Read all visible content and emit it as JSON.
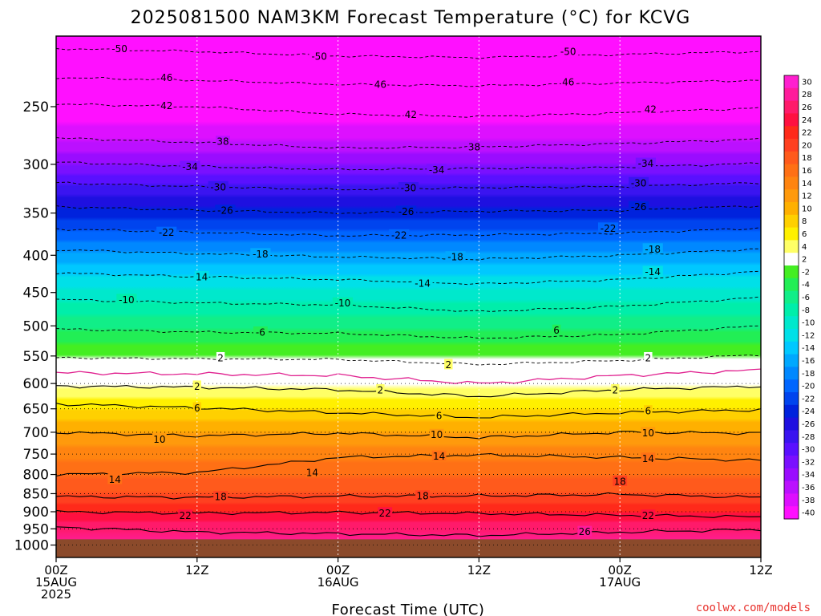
{
  "page": {
    "title": "2025081500 NAM3KM Forecast Temperature (°C) for KCVG",
    "credit": "coolwx.com/models"
  },
  "chart_data": {
    "type": "heatmap",
    "title": "2025081500 NAM3KM Forecast Temperature (°C) for KCVG",
    "xlabel": "Forecast Time (UTC)",
    "ylabel": "",
    "x_ticks": [
      {
        "hour": 0,
        "lines": [
          "00Z",
          "15AUG",
          "2025"
        ]
      },
      {
        "hour": 12,
        "lines": [
          "12Z"
        ]
      },
      {
        "hour": 24,
        "lines": [
          "00Z",
          "16AUG"
        ]
      },
      {
        "hour": 36,
        "lines": [
          "12Z"
        ]
      },
      {
        "hour": 48,
        "lines": [
          "00Z",
          "17AUG"
        ]
      },
      {
        "hour": 60,
        "lines": [
          "12Z"
        ]
      }
    ],
    "xlim": [
      0,
      60
    ],
    "y_ticks": [
      250,
      300,
      350,
      400,
      450,
      500,
      550,
      600,
      650,
      700,
      750,
      800,
      850,
      900,
      950,
      1000
    ],
    "ylim_hPa": [
      200,
      1040
    ],
    "y_scale": "log-pressure",
    "ground_pressure_hPa": 982,
    "ground_color": "#8b4a2b",
    "colorbar": {
      "ticks": [
        30,
        28,
        26,
        24,
        22,
        20,
        18,
        16,
        14,
        12,
        10,
        8,
        6,
        4,
        2,
        -2,
        -4,
        -6,
        -8,
        -10,
        -12,
        -14,
        -16,
        -18,
        -20,
        -22,
        -24,
        -26,
        -28,
        -30,
        -32,
        -34,
        -36,
        -38,
        -40
      ],
      "colors": [
        {
          "from": 28,
          "to": 32,
          "color": "#ff1fcf"
        },
        {
          "from": 26,
          "to": 28,
          "color": "#ff1b9b"
        },
        {
          "from": 24,
          "to": 26,
          "color": "#ff1a6a"
        },
        {
          "from": 22,
          "to": 24,
          "color": "#ff1040"
        },
        {
          "from": 20,
          "to": 22,
          "color": "#ff2a1a"
        },
        {
          "from": 18,
          "to": 20,
          "color": "#ff4020"
        },
        {
          "from": 16,
          "to": 18,
          "color": "#ff5a1c"
        },
        {
          "from": 14,
          "to": 16,
          "color": "#ff7015"
        },
        {
          "from": 12,
          "to": 14,
          "color": "#ff8410"
        },
        {
          "from": 10,
          "to": 12,
          "color": "#ff9a0c"
        },
        {
          "from": 8,
          "to": 10,
          "color": "#ffb000"
        },
        {
          "from": 6,
          "to": 8,
          "color": "#ffd000"
        },
        {
          "from": 4,
          "to": 6,
          "color": "#fff000"
        },
        {
          "from": 2,
          "to": 4,
          "color": "#ffff66"
        },
        {
          "from": -2,
          "to": 2,
          "color": "#ffffff"
        },
        {
          "from": -4,
          "to": -2,
          "color": "#44ee22"
        },
        {
          "from": -6,
          "to": -4,
          "color": "#22ee55"
        },
        {
          "from": -8,
          "to": -6,
          "color": "#11ee88"
        },
        {
          "from": -10,
          "to": -8,
          "color": "#00eeaa"
        },
        {
          "from": -12,
          "to": -10,
          "color": "#00e8cc"
        },
        {
          "from": -14,
          "to": -12,
          "color": "#00e0e8"
        },
        {
          "from": -16,
          "to": -14,
          "color": "#00c8ff"
        },
        {
          "from": -18,
          "to": -16,
          "color": "#00a8ff"
        },
        {
          "from": -20,
          "to": -18,
          "color": "#0088ff"
        },
        {
          "from": -22,
          "to": -20,
          "color": "#0066ff"
        },
        {
          "from": -24,
          "to": -22,
          "color": "#0044ee"
        },
        {
          "from": -26,
          "to": -24,
          "color": "#0022dd"
        },
        {
          "from": -28,
          "to": -26,
          "color": "#1e10e0"
        },
        {
          "from": -30,
          "to": -28,
          "color": "#3a14f0"
        },
        {
          "from": -32,
          "to": -30,
          "color": "#5a10ff"
        },
        {
          "from": -34,
          "to": -32,
          "color": "#7a10ff"
        },
        {
          "from": -36,
          "to": -34,
          "color": "#9a0cff"
        },
        {
          "from": -38,
          "to": -36,
          "color": "#bb10ff"
        },
        {
          "from": -40,
          "to": -38,
          "color": "#dd10ff"
        },
        {
          "from": -44,
          "to": -40,
          "color": "#ff10ff"
        }
      ]
    },
    "isotherms_hPa": [
      {
        "t": -50,
        "p": [
          208,
          210,
          213,
          214,
          212,
          210
        ]
      },
      {
        "t": -46,
        "p": [
          228,
          230,
          233,
          234,
          232,
          230
        ]
      },
      {
        "t": -42,
        "p": [
          248,
          250,
          256,
          258,
          255,
          251
        ]
      },
      {
        "t": -38,
        "p": [
          276,
          280,
          285,
          284,
          281,
          277
        ]
      },
      {
        "t": -34,
        "p": [
          298,
          302,
          305,
          304,
          303,
          299
        ]
      },
      {
        "t": -30,
        "p": [
          318,
          322,
          325,
          323,
          322,
          318
        ]
      },
      {
        "t": -26,
        "p": [
          343,
          347,
          350,
          348,
          347,
          342
        ]
      },
      {
        "t": -22,
        "p": [
          368,
          372,
          376,
          375,
          373,
          367
        ]
      },
      {
        "t": -18,
        "p": [
          393,
          398,
          402,
          405,
          400,
          392
        ]
      },
      {
        "t": -14,
        "p": [
          423,
          428,
          432,
          438,
          432,
          421
        ]
      },
      {
        "t": -10,
        "p": [
          460,
          465,
          468,
          478,
          470,
          457
        ]
      },
      {
        "t": -6,
        "p": [
          505,
          510,
          512,
          520,
          514,
          500
        ]
      },
      {
        "t": -2,
        "p": [
          553,
          555,
          556,
          565,
          558,
          548
        ]
      },
      {
        "t": 2,
        "p": [
          605,
          607,
          612,
          625,
          612,
          605
        ]
      },
      {
        "t": 6,
        "p": [
          640,
          648,
          658,
          668,
          658,
          652
        ]
      },
      {
        "t": 10,
        "p": [
          700,
          708,
          702,
          712,
          700,
          702
        ]
      },
      {
        "t": 14,
        "p": [
          800,
          795,
          758,
          752,
          758,
          765
        ]
      },
      {
        "t": 18,
        "p": [
          858,
          860,
          857,
          856,
          852,
          860
        ]
      },
      {
        "t": 22,
        "p": [
          900,
          904,
          902,
          905,
          910,
          915
        ]
      },
      {
        "t": 26,
        "p": [
          945,
          960,
          965,
          970,
          960,
          952
        ]
      }
    ],
    "freezing_level_hPa": [
      580,
      582,
      585,
      600,
      585,
      575
    ],
    "contour_labels": [
      {
        "text": "-50",
        "hour": 5.4,
        "p": 208
      },
      {
        "text": "-50",
        "hour": 22.4,
        "p": 213
      },
      {
        "text": "-50",
        "hour": 43.6,
        "p": 210
      },
      {
        "text": "46",
        "hour": 9.4,
        "p": 228
      },
      {
        "text": "46",
        "hour": 27.6,
        "p": 233
      },
      {
        "text": "46",
        "hour": 43.6,
        "p": 231
      },
      {
        "text": "42",
        "hour": 9.4,
        "p": 249
      },
      {
        "text": "42",
        "hour": 30.2,
        "p": 256
      },
      {
        "text": "42",
        "hour": 50.6,
        "p": 252
      },
      {
        "text": "38",
        "hour": 14.2,
        "p": 279
      },
      {
        "text": "38",
        "hour": 35.6,
        "p": 284
      },
      {
        "text": "-34",
        "hour": 11.4,
        "p": 302
      },
      {
        "text": "-34",
        "hour": 32.4,
        "p": 305
      },
      {
        "text": "-34",
        "hour": 50.2,
        "p": 299
      },
      {
        "text": "-30",
        "hour": 13.8,
        "p": 322
      },
      {
        "text": "-30",
        "hour": 30.0,
        "p": 323
      },
      {
        "text": "-30",
        "hour": 49.6,
        "p": 318
      },
      {
        "text": "-26",
        "hour": 14.4,
        "p": 347
      },
      {
        "text": "-26",
        "hour": 29.8,
        "p": 348
      },
      {
        "text": "-26",
        "hour": 49.6,
        "p": 343
      },
      {
        "text": "-22",
        "hour": 9.4,
        "p": 372
      },
      {
        "text": "-22",
        "hour": 29.2,
        "p": 375
      },
      {
        "text": "-22",
        "hour": 47.0,
        "p": 367
      },
      {
        "text": "-18",
        "hour": 17.4,
        "p": 398
      },
      {
        "text": "-18",
        "hour": 34.0,
        "p": 402
      },
      {
        "text": "-18",
        "hour": 50.8,
        "p": 392
      },
      {
        "text": "14",
        "hour": 12.4,
        "p": 428
      },
      {
        "text": "-14",
        "hour": 31.2,
        "p": 437
      },
      {
        "text": "-14",
        "hour": 50.8,
        "p": 421
      },
      {
        "text": "-10",
        "hour": 6.0,
        "p": 460
      },
      {
        "text": "-10",
        "hour": 24.4,
        "p": 465
      },
      {
        "text": "-6",
        "hour": 17.4,
        "p": 510
      },
      {
        "text": "6",
        "hour": 42.6,
        "p": 507
      },
      {
        "text": "2",
        "hour": 14.0,
        "p": 553
      },
      {
        "text": "2",
        "hour": 33.4,
        "p": 565
      },
      {
        "text": "2",
        "hour": 50.4,
        "p": 553
      },
      {
        "text": "2",
        "hour": 12.0,
        "p": 605
      },
      {
        "text": "2",
        "hour": 27.6,
        "p": 612
      },
      {
        "text": "2",
        "hour": 47.6,
        "p": 612
      },
      {
        "text": "6",
        "hour": 12.0,
        "p": 648
      },
      {
        "text": "6",
        "hour": 32.6,
        "p": 664
      },
      {
        "text": "6",
        "hour": 50.4,
        "p": 654
      },
      {
        "text": "10",
        "hour": 8.8,
        "p": 715
      },
      {
        "text": "10",
        "hour": 32.4,
        "p": 705
      },
      {
        "text": "10",
        "hour": 50.4,
        "p": 701
      },
      {
        "text": "14",
        "hour": 5.0,
        "p": 812
      },
      {
        "text": "14",
        "hour": 21.8,
        "p": 795
      },
      {
        "text": "14",
        "hour": 32.6,
        "p": 755
      },
      {
        "text": "14",
        "hour": 50.4,
        "p": 760
      },
      {
        "text": "18",
        "hour": 14.0,
        "p": 858
      },
      {
        "text": "18",
        "hour": 31.2,
        "p": 856
      },
      {
        "text": "18",
        "hour": 48.0,
        "p": 817
      },
      {
        "text": "22",
        "hour": 11.0,
        "p": 910
      },
      {
        "text": "22",
        "hour": 28.0,
        "p": 903
      },
      {
        "text": "22",
        "hour": 50.4,
        "p": 910
      },
      {
        "text": "26",
        "hour": 45.0,
        "p": 958
      }
    ]
  }
}
